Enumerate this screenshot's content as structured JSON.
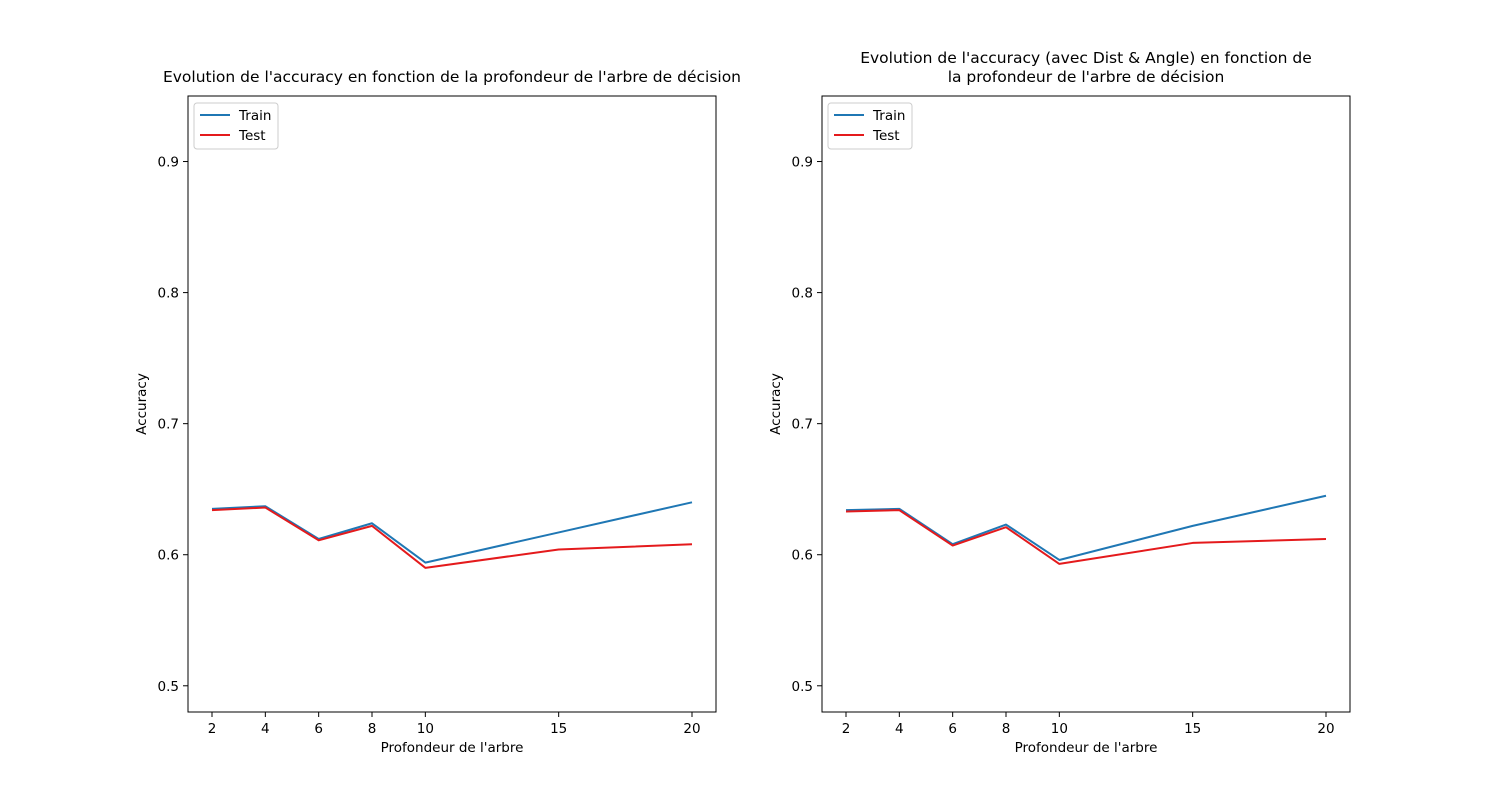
{
  "chart_data": [
    {
      "type": "line",
      "title": "Evolution de l'accuracy en fonction de la profondeur de l'arbre de décision",
      "title_lines": [
        "Evolution de l'accuracy en fonction de la profondeur de l'arbre de décision"
      ],
      "xlabel": "Profondeur de l'arbre",
      "ylabel": "Accuracy",
      "x": [
        2,
        4,
        6,
        8,
        10,
        15,
        20
      ],
      "x_ticks": [
        "2",
        "4",
        "6",
        "8",
        "10",
        "15",
        "20"
      ],
      "y_ticks": [
        "0.5",
        "0.6",
        "0.7",
        "0.8",
        "0.9"
      ],
      "xlim": [
        1.1,
        20.9
      ],
      "ylim": [
        0.48,
        0.95
      ],
      "grid": false,
      "legend_position": "top-left",
      "series": [
        {
          "name": "Train",
          "color": "#1f77b4",
          "values": [
            0.635,
            0.637,
            0.612,
            0.624,
            0.594,
            0.617,
            0.64
          ]
        },
        {
          "name": "Test",
          "color": "#e41a1c",
          "values": [
            0.634,
            0.636,
            0.611,
            0.622,
            0.59,
            0.604,
            0.608
          ]
        }
      ]
    },
    {
      "type": "line",
      "title": "Evolution de l'accuracy (avec Dist & Angle) en fonction de la profondeur de l'arbre de décision",
      "title_lines": [
        "Evolution de l'accuracy (avec Dist & Angle) en fonction de",
        "la profondeur de l'arbre de décision"
      ],
      "xlabel": "Profondeur de l'arbre",
      "ylabel": "Accuracy",
      "x": [
        2,
        4,
        6,
        8,
        10,
        15,
        20
      ],
      "x_ticks": [
        "2",
        "4",
        "6",
        "8",
        "10",
        "15",
        "20"
      ],
      "y_ticks": [
        "0.5",
        "0.6",
        "0.7",
        "0.8",
        "0.9"
      ],
      "xlim": [
        1.1,
        20.9
      ],
      "ylim": [
        0.48,
        0.95
      ],
      "grid": false,
      "legend_position": "top-left",
      "series": [
        {
          "name": "Train",
          "color": "#1f77b4",
          "values": [
            0.634,
            0.635,
            0.608,
            0.623,
            0.596,
            0.622,
            0.645
          ]
        },
        {
          "name": "Test",
          "color": "#e41a1c",
          "values": [
            0.633,
            0.634,
            0.607,
            0.621,
            0.593,
            0.609,
            0.612
          ]
        }
      ]
    }
  ]
}
